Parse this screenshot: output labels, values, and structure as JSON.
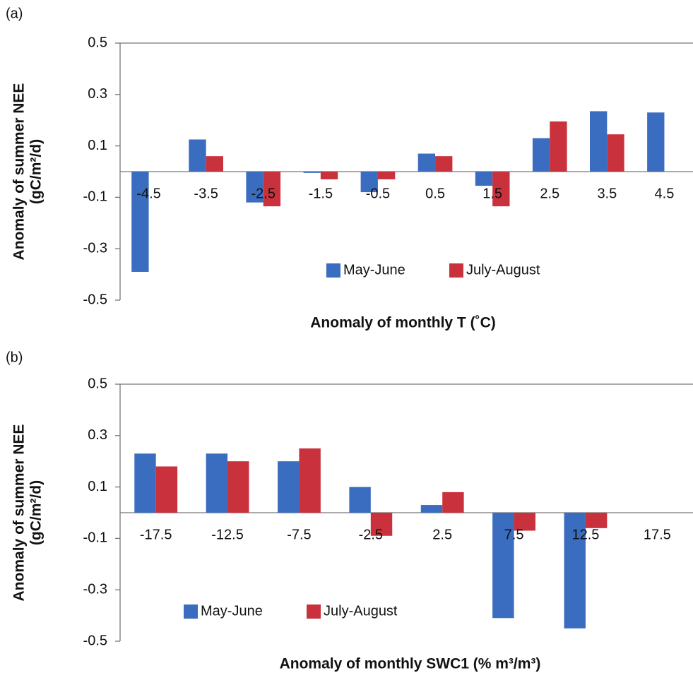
{
  "chart_data": [
    {
      "type": "bar",
      "panel_label": "(a)",
      "ylabel": [
        "Anomaly of summer NEE",
        "(gC/m²/d)"
      ],
      "xlabel": "Anomaly of monthly T (˚C)",
      "categories": [
        "-4.5",
        "-3.5",
        "-2.5",
        "-1.5",
        "-0.5",
        "0.5",
        "1.5",
        "2.5",
        "3.5",
        "4.5"
      ],
      "series": [
        {
          "name": "May-June",
          "color": "#3a6cc0",
          "values": [
            -0.39,
            0.125,
            -0.12,
            -0.005,
            -0.08,
            0.07,
            -0.055,
            0.13,
            0.235,
            0.23
          ]
        },
        {
          "name": "July-August",
          "color": "#c9323c",
          "values": [
            null,
            0.06,
            -0.135,
            -0.03,
            -0.03,
            0.06,
            -0.135,
            0.195,
            0.145,
            null
          ]
        }
      ],
      "ylim": [
        -0.5,
        0.5
      ],
      "yticks": [
        0.5,
        0.3,
        0.1,
        -0.1,
        -0.3,
        -0.5
      ],
      "legend_loc": "lower center"
    },
    {
      "type": "bar",
      "panel_label": "(b)",
      "ylabel": [
        "Anomaly of summer NEE",
        "(gC/m²/d)"
      ],
      "xlabel": "Anomaly of monthly SWC1 (% m³/m³)",
      "categories": [
        "-17.5",
        "-12.5",
        "-7.5",
        "-2.5",
        "2.5",
        "7.5",
        "12.5",
        "17.5"
      ],
      "series": [
        {
          "name": "May-June",
          "color": "#3a6cc0",
          "values": [
            0.23,
            0.23,
            0.2,
            0.1,
            0.03,
            -0.41,
            -0.45,
            null
          ]
        },
        {
          "name": "July-August",
          "color": "#c9323c",
          "values": [
            0.18,
            0.2,
            0.25,
            -0.09,
            0.08,
            -0.07,
            -0.06,
            null
          ]
        }
      ],
      "ylim": [
        -0.5,
        0.5
      ],
      "yticks": [
        0.5,
        0.3,
        0.1,
        -0.1,
        -0.3,
        -0.5
      ],
      "legend_loc": "lower left"
    }
  ]
}
